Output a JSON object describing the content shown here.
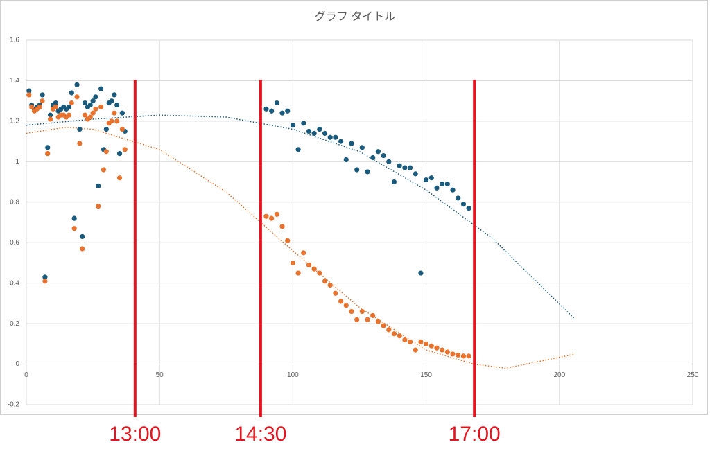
{
  "chart_data": {
    "type": "scatter",
    "title": "グラフ タイトル",
    "xlim": [
      0,
      250
    ],
    "xticks": [
      0,
      50,
      100,
      150,
      200,
      250
    ],
    "ylim": [
      -0.2,
      1.6
    ],
    "yticks": [
      -0.2,
      0,
      0.2,
      0.4,
      0.6,
      0.8,
      1,
      1.2,
      1.4,
      1.6
    ],
    "grid": true,
    "x": [
      1,
      2,
      3,
      4,
      5,
      6,
      7,
      8,
      9,
      10,
      11,
      12,
      13,
      14,
      15,
      16,
      17,
      18,
      19,
      20,
      21,
      22,
      23,
      24,
      25,
      26,
      27,
      28,
      29,
      30,
      31,
      32,
      33,
      34,
      35,
      36,
      37,
      90,
      92,
      94,
      96,
      98,
      100,
      102,
      104,
      106,
      108,
      110,
      112,
      114,
      116,
      118,
      120,
      122,
      124,
      126,
      128,
      130,
      132,
      134,
      136,
      138,
      140,
      142,
      144,
      146,
      148,
      150,
      152,
      154,
      156,
      158,
      160,
      162,
      164,
      166
    ],
    "series": [
      {
        "color": "#1a5a7c",
        "values": [
          1.35,
          1.28,
          1.26,
          1.27,
          1.28,
          1.33,
          0.43,
          1.07,
          1.23,
          1.28,
          1.29,
          1.25,
          1.26,
          1.27,
          1.26,
          1.27,
          1.34,
          0.72,
          1.38,
          1.16,
          0.63,
          1.29,
          1.27,
          1.28,
          1.3,
          1.32,
          0.88,
          1.36,
          1.06,
          1.16,
          1.29,
          1.3,
          1.33,
          1.28,
          1.04,
          1.24,
          1.15,
          1.26,
          1.25,
          1.29,
          1.24,
          1.25,
          1.18,
          1.06,
          1.19,
          1.15,
          1.14,
          1.16,
          1.14,
          1.12,
          1.12,
          1.1,
          1.01,
          1.09,
          0.96,
          1.07,
          0.95,
          1.02,
          1.05,
          1.03,
          1.0,
          0.9,
          0.98,
          0.97,
          0.97,
          0.94,
          0.45,
          0.91,
          0.92,
          0.87,
          0.89,
          0.89,
          0.86,
          0.82,
          0.79,
          0.77
        ]
      },
      {
        "color": "#e8732e",
        "values": [
          1.33,
          1.27,
          1.25,
          1.26,
          1.27,
          1.3,
          0.41,
          1.04,
          1.21,
          1.26,
          1.27,
          1.22,
          1.23,
          1.23,
          1.22,
          1.23,
          1.29,
          0.67,
          1.32,
          1.09,
          0.57,
          1.23,
          1.21,
          1.22,
          1.24,
          1.26,
          0.78,
          1.27,
          0.96,
          1.05,
          1.19,
          1.2,
          1.24,
          1.2,
          0.92,
          1.16,
          1.06,
          0.73,
          0.72,
          0.74,
          0.68,
          0.61,
          0.5,
          0.45,
          0.55,
          0.49,
          0.47,
          0.45,
          0.41,
          0.39,
          0.35,
          0.31,
          0.29,
          0.26,
          0.22,
          0.26,
          0.22,
          0.24,
          0.21,
          0.19,
          0.17,
          0.15,
          0.14,
          0.12,
          0.11,
          0.07,
          0.11,
          0.1,
          0.09,
          0.08,
          0.07,
          0.06,
          0.05,
          0.045,
          0.04,
          0.04
        ]
      }
    ],
    "trendlines": [
      {
        "color": "#1a5a7c",
        "x": [
          0,
          25,
          50,
          75,
          100,
          125,
          150,
          175,
          206
        ],
        "values": [
          1.18,
          1.21,
          1.23,
          1.22,
          1.16,
          1.05,
          0.86,
          0.62,
          0.22
        ]
      },
      {
        "color": "#e8732e",
        "x": [
          0,
          15,
          25,
          50,
          75,
          100,
          125,
          150,
          168,
          180,
          206
        ],
        "values": [
          1.14,
          1.17,
          1.16,
          1.06,
          0.85,
          0.56,
          0.28,
          0.07,
          0.0,
          -0.02,
          0.05
        ]
      }
    ],
    "annotations": [
      {
        "x": 40.8,
        "label": "13:00"
      },
      {
        "x": 87.9,
        "label": "14:30"
      },
      {
        "x": 168.1,
        "label": "17:00"
      }
    ],
    "annotation_color": "#e5141e"
  }
}
